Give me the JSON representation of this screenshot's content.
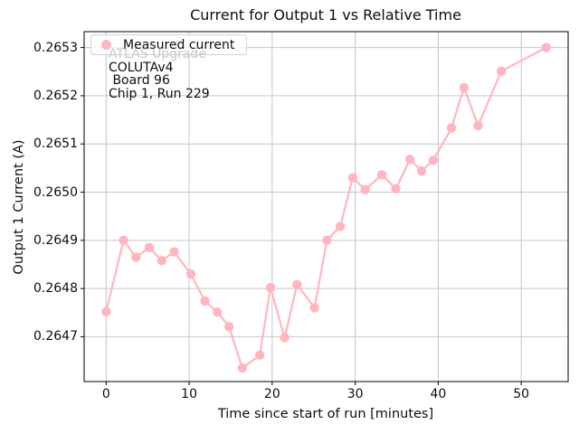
{
  "title": "Current for Output 1 vs Relative Time",
  "legend": {
    "label": "Measured current"
  },
  "annotation": {
    "watermark": "ATLAS Upgrade",
    "lines": [
      "COLUTAv4",
      " Board 96",
      "Chip 1, Run 229"
    ]
  },
  "colors": {
    "series": "#ffb6c1",
    "grid": "#c6c6c6",
    "spine": "#000000",
    "watermark": "#c7c7c7",
    "legend_border": "#d2d2d2",
    "text": "#0d0d0d"
  },
  "chart_data": {
    "type": "line",
    "title": "Current for Output 1 vs Relative Time",
    "xlabel": "Time since start of run [minutes]",
    "ylabel": "Output 1 Current (A)",
    "xlim": [
      -2.65,
      55.65
    ],
    "ylim": [
      0.264607,
      0.265333
    ],
    "xticks": [
      0,
      10,
      20,
      30,
      40,
      50
    ],
    "yticks": [
      0.2647,
      0.2648,
      0.2649,
      0.265,
      0.2651,
      0.2652,
      0.2653
    ],
    "grid": true,
    "legend_position": "upper left",
    "series": [
      {
        "name": "Measured current",
        "marker": "o",
        "x": [
          0.0,
          2.1,
          3.6,
          5.2,
          6.7,
          8.2,
          10.2,
          11.9,
          13.4,
          14.8,
          16.4,
          18.5,
          19.8,
          21.5,
          23.0,
          25.1,
          26.6,
          28.2,
          29.7,
          31.2,
          33.2,
          34.9,
          36.6,
          38.0,
          39.4,
          41.6,
          43.1,
          44.8,
          47.6,
          53.0
        ],
        "y": [
          0.264752,
          0.2649,
          0.264865,
          0.264885,
          0.264858,
          0.264876,
          0.26483,
          0.264774,
          0.264751,
          0.264721,
          0.264635,
          0.264662,
          0.264802,
          0.264698,
          0.264808,
          0.26476,
          0.2649,
          0.264929,
          0.26503,
          0.265005,
          0.265036,
          0.265007,
          0.265068,
          0.265044,
          0.265066,
          0.265133,
          0.265217,
          0.265138,
          0.265251,
          0.2653
        ]
      }
    ]
  }
}
